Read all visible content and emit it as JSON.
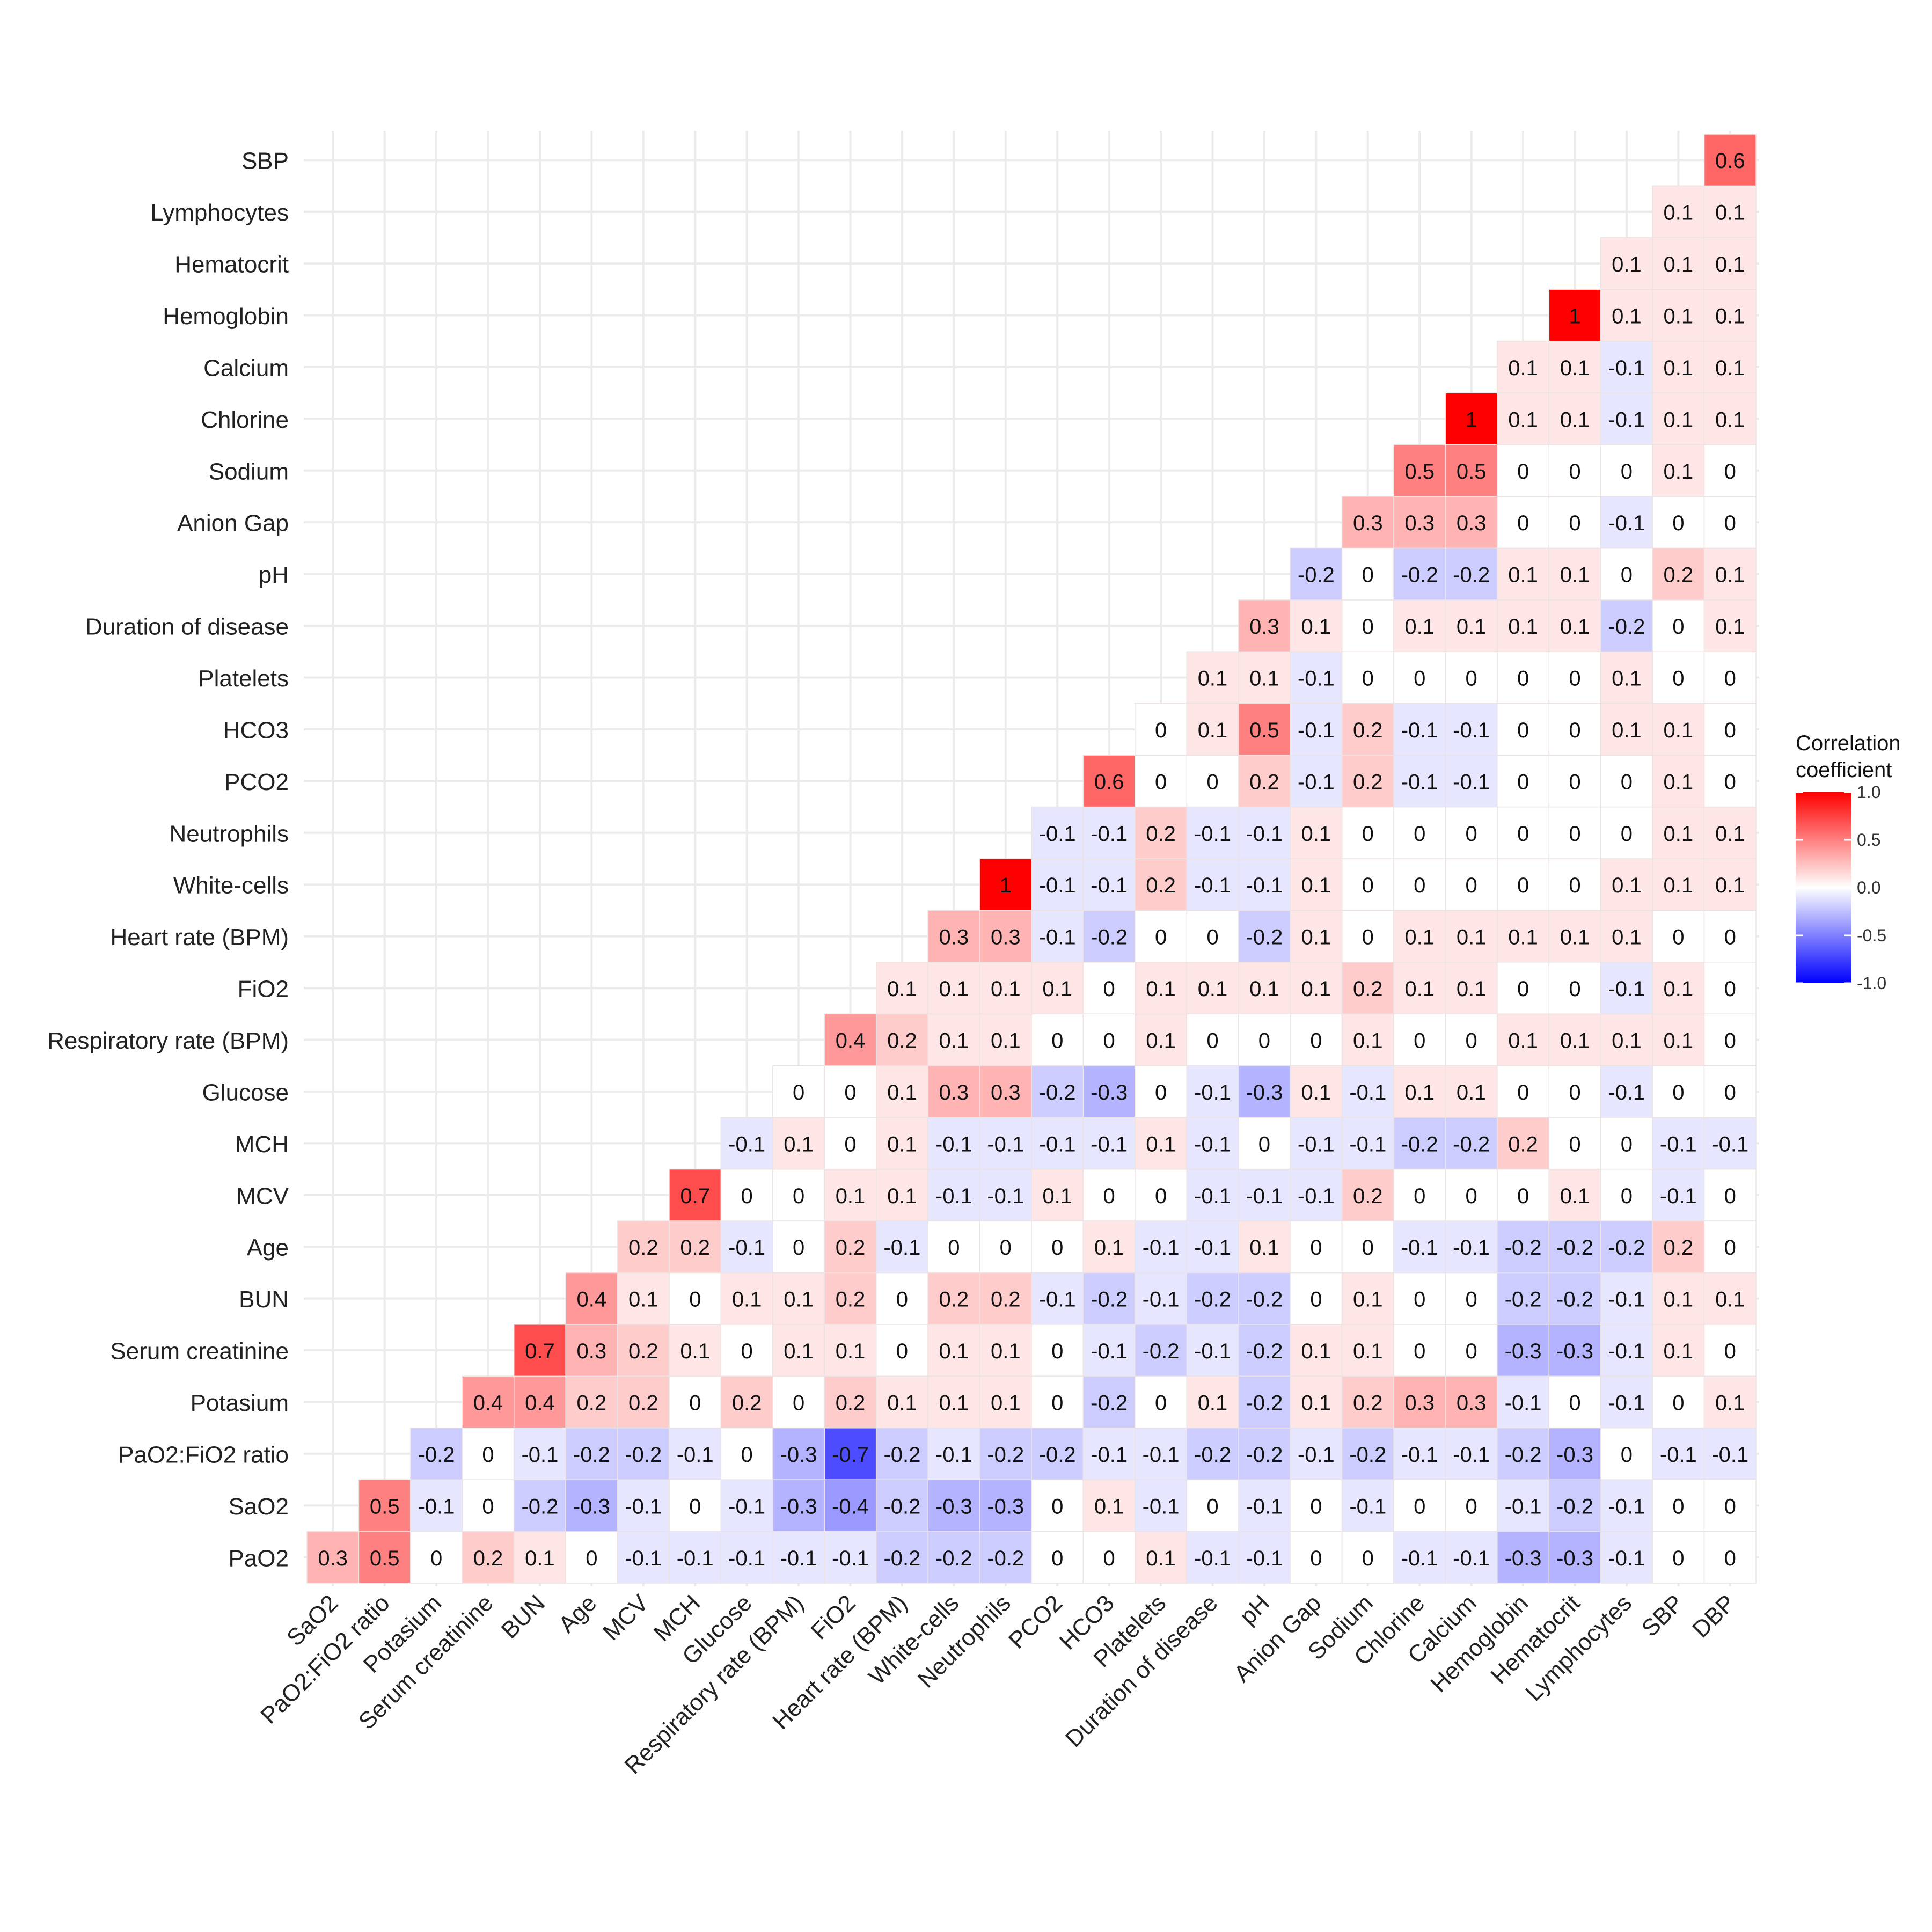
{
  "chart_data": {
    "type": "heatmap",
    "title": "",
    "xlabel": "",
    "ylabel": "",
    "x_labels": [
      "SaO2",
      "PaO2:FiO2 ratio",
      "Potasium",
      "Serum creatinine",
      "BUN",
      "Age",
      "MCV",
      "MCH",
      "Glucose",
      "Respiratory rate (BPM)",
      "FiO2",
      "Heart rate (BPM)",
      "White-cells",
      "Neutrophils",
      "PCO2",
      "HCO3",
      "Platelets",
      "Duration of disease",
      "pH",
      "Anion Gap",
      "Sodium",
      "Chlorine",
      "Calcium",
      "Hemoglobin",
      "Hematocrit",
      "Lymphocytes",
      "SBP",
      "DBP"
    ],
    "y_labels": [
      "PaO2",
      "SaO2",
      "PaO2:FiO2 ratio",
      "Potasium",
      "Serum creatinine",
      "BUN",
      "Age",
      "MCV",
      "MCH",
      "Glucose",
      "Respiratory rate (BPM)",
      "FiO2",
      "Heart rate (BPM)",
      "White-cells",
      "Neutrophils",
      "PCO2",
      "HCO3",
      "Platelets",
      "Duration of disease",
      "pH",
      "Anion Gap",
      "Sodium",
      "Chlorine",
      "Calcium",
      "Hemoglobin",
      "Hematocrit",
      "Lymphocytes",
      "SBP"
    ],
    "rows": [
      [
        0.3,
        0.5,
        0,
        0.2,
        0.1,
        0,
        -0.1,
        -0.1,
        -0.1,
        -0.1,
        -0.1,
        -0.2,
        -0.2,
        -0.2,
        0,
        0,
        0.1,
        -0.1,
        -0.1,
        0,
        0,
        -0.1,
        -0.1,
        -0.3,
        -0.3,
        -0.1,
        0,
        0
      ],
      [
        0.5,
        -0.1,
        0,
        -0.2,
        -0.3,
        -0.1,
        0,
        -0.1,
        -0.3,
        -0.4,
        -0.2,
        -0.3,
        -0.3,
        0,
        0.1,
        -0.1,
        0,
        -0.1,
        0,
        -0.1,
        0,
        0,
        -0.1,
        -0.2,
        -0.1,
        0,
        0
      ],
      [
        -0.2,
        0,
        -0.1,
        -0.2,
        -0.2,
        -0.1,
        0,
        -0.3,
        -0.7,
        -0.2,
        -0.1,
        -0.2,
        -0.2,
        -0.1,
        -0.1,
        -0.2,
        -0.2,
        -0.1,
        -0.2,
        -0.1,
        -0.1,
        -0.2,
        -0.3,
        0,
        -0.1,
        -0.1
      ],
      [
        0.4,
        0.4,
        0.2,
        0.2,
        0,
        0.2,
        0,
        0.2,
        0.1,
        0.1,
        0.1,
        0,
        -0.2,
        0,
        0.1,
        -0.2,
        0.1,
        0.2,
        0.3,
        0.3,
        -0.1,
        0,
        -0.1,
        0,
        0.1
      ],
      [
        0.7,
        0.3,
        0.2,
        0.1,
        0,
        0.1,
        0.1,
        0,
        0.1,
        0.1,
        0,
        -0.1,
        -0.2,
        -0.1,
        -0.2,
        0.1,
        0.1,
        0,
        0,
        -0.3,
        -0.3,
        -0.1,
        0.1,
        0
      ],
      [
        0.4,
        0.1,
        0,
        0.1,
        0.1,
        0.2,
        0,
        0.2,
        0.2,
        -0.1,
        -0.2,
        -0.1,
        -0.2,
        -0.2,
        0,
        0.1,
        0,
        0,
        -0.2,
        -0.2,
        -0.1,
        0.1,
        0.1
      ],
      [
        0.2,
        0.2,
        -0.1,
        0,
        0.2,
        -0.1,
        0,
        0,
        0,
        0.1,
        -0.1,
        -0.1,
        0.1,
        0,
        0,
        -0.1,
        -0.1,
        -0.2,
        -0.2,
        -0.2,
        0.2,
        0
      ],
      [
        0.7,
        0,
        0,
        0.1,
        0.1,
        -0.1,
        -0.1,
        0.1,
        0,
        0,
        -0.1,
        -0.1,
        -0.1,
        0.2,
        0,
        0,
        0,
        0.1,
        0,
        -0.1,
        0
      ],
      [
        -0.1,
        0.1,
        0,
        0.1,
        -0.1,
        -0.1,
        -0.1,
        -0.1,
        0.1,
        -0.1,
        0,
        -0.1,
        -0.1,
        -0.2,
        -0.2,
        0.2,
        0,
        0,
        -0.1,
        -0.1
      ],
      [
        0,
        0,
        0.1,
        0.3,
        0.3,
        -0.2,
        -0.3,
        0,
        -0.1,
        -0.3,
        0.1,
        -0.1,
        0.1,
        0.1,
        0,
        0,
        -0.1,
        0,
        0
      ],
      [
        0.4,
        0.2,
        0.1,
        0.1,
        0,
        0,
        0.1,
        0,
        0,
        0,
        0.1,
        0,
        0,
        0.1,
        0.1,
        0.1,
        0.1,
        0
      ],
      [
        0.1,
        0.1,
        0.1,
        0.1,
        0,
        0.1,
        0.1,
        0.1,
        0.1,
        0.2,
        0.1,
        0.1,
        0,
        0,
        -0.1,
        0.1,
        0
      ],
      [
        0.3,
        0.3,
        -0.1,
        -0.2,
        0,
        0,
        -0.2,
        0.1,
        0,
        0.1,
        0.1,
        0.1,
        0.1,
        0.1,
        0,
        0
      ],
      [
        1,
        -0.1,
        -0.1,
        0.2,
        -0.1,
        -0.1,
        0.1,
        0,
        0,
        0,
        0,
        0,
        0.1,
        0.1,
        0.1
      ],
      [
        -0.1,
        -0.1,
        0.2,
        -0.1,
        -0.1,
        0.1,
        0,
        0,
        0,
        0,
        0,
        0,
        0.1,
        0.1
      ],
      [
        0.6,
        0,
        0,
        0.2,
        -0.1,
        0.2,
        -0.1,
        -0.1,
        0,
        0,
        0,
        0.1,
        0
      ],
      [
        0,
        0.1,
        0.5,
        -0.1,
        0.2,
        -0.1,
        -0.1,
        0,
        0,
        0.1,
        0.1,
        0
      ],
      [
        0.1,
        0.1,
        -0.1,
        0,
        0,
        0,
        0,
        0,
        0.1,
        0,
        0
      ],
      [
        0.3,
        0.1,
        0,
        0.1,
        0.1,
        0.1,
        0.1,
        -0.2,
        0,
        0.1
      ],
      [
        -0.2,
        0,
        -0.2,
        -0.2,
        0.1,
        0.1,
        0,
        0.2,
        0.1
      ],
      [
        0.3,
        0.3,
        0.3,
        0,
        0,
        -0.1,
        0,
        0
      ],
      [
        0.5,
        0.5,
        0,
        0,
        0,
        0.1,
        0
      ],
      [
        1,
        0.1,
        0.1,
        -0.1,
        0.1,
        0.1
      ],
      [
        0.1,
        0.1,
        -0.1,
        0.1,
        0.1
      ],
      [
        1,
        0.1,
        0.1,
        0.1
      ],
      [
        0.1,
        0.1,
        0.1
      ],
      [
        0.1,
        0.1
      ],
      [
        0.6
      ]
    ],
    "legend": {
      "title_lines": [
        "Correlation",
        "coefficient"
      ],
      "ticks": [
        "1.0",
        "0.5",
        "0.0",
        "-0.5",
        "-1.0"
      ],
      "range": [
        -1,
        1
      ],
      "position": "right"
    },
    "colors": {
      "low": "#0000ff",
      "mid": "#ffffff",
      "high": "#ff0000",
      "grid": "#ebebeb"
    }
  }
}
